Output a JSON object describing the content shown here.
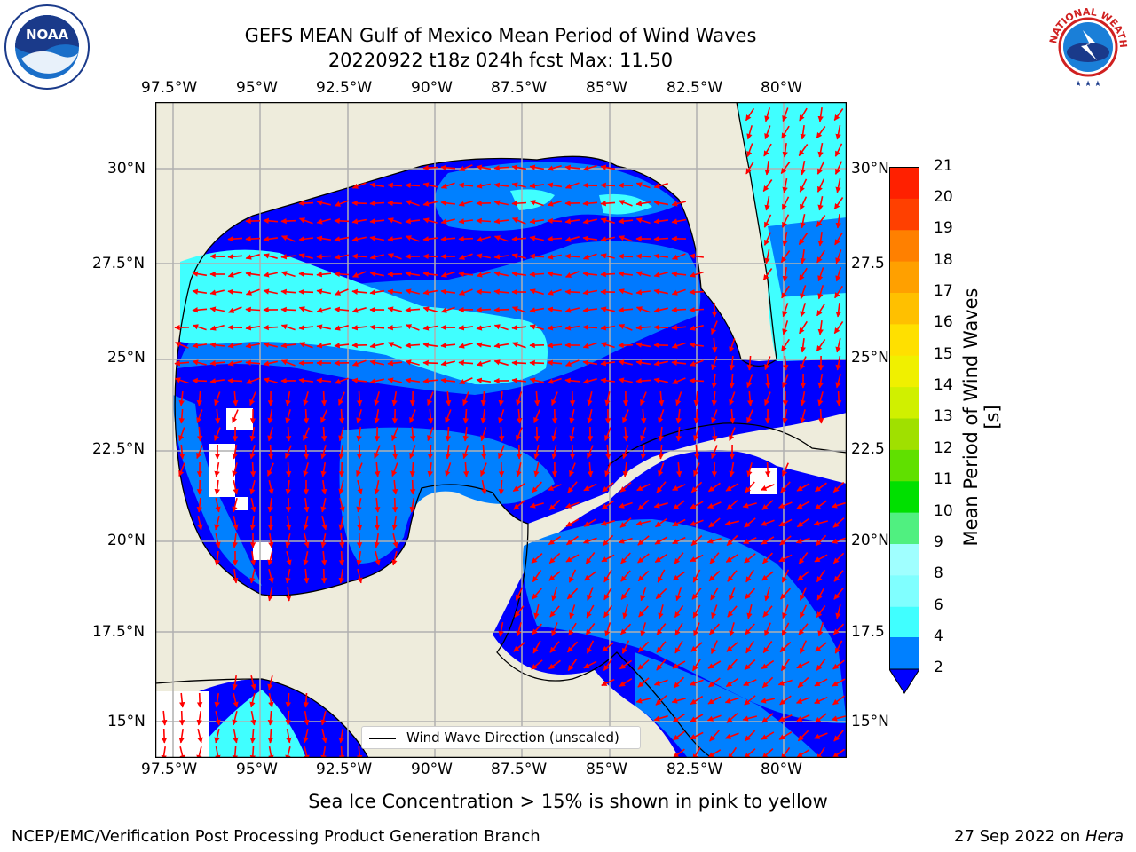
{
  "header": {
    "title_line1": "GEFS MEAN Gulf of Mexico Mean Period of Wind Waves",
    "title_line2": "20220922 t18z 024h fcst   Max: 11.50"
  },
  "logos": {
    "left": {
      "name": "noaa-logo",
      "text": "NOAA",
      "ring_text": "NATIONAL OCEANIC AND ATMOSPHERIC ADMINISTRATION · U.S. DEPARTMENT OF COMMERCE"
    },
    "right": {
      "name": "nws-logo",
      "ring_text": "NATIONAL WEATHER SERVICE"
    }
  },
  "map": {
    "lon_ticks": [
      "97.5°W",
      "95°W",
      "92.5°W",
      "90°W",
      "87.5°W",
      "85°W",
      "82.5°W",
      "80°W"
    ],
    "lat_ticks": [
      "30°N",
      "27.5°N",
      "25°N",
      "22.5°N",
      "20°N",
      "17.5°N",
      "15°N"
    ],
    "lat_ticks_right": [
      "30°N",
      "27.5",
      "25°N",
      "22.5",
      "20°N",
      "17.5",
      "15°N"
    ],
    "legend_label": "Wind Wave Direction (unscaled)",
    "colors": {
      "land": "#eeecdc",
      "ocean_blue": "#0000ff",
      "mid_blue": "#0080ff",
      "cyan": "#00ffff",
      "light_cyan": "#40ffff",
      "arrow": "#ff0000",
      "grid": "#b0b0b0"
    }
  },
  "colorbar": {
    "label": "Mean Period of Wind Waves [s]",
    "tick_labels": [
      "2",
      "4",
      "6",
      "8",
      "9",
      "10",
      "11",
      "12",
      "13",
      "14",
      "15",
      "16",
      "17",
      "18",
      "19",
      "20",
      "21"
    ],
    "colors": [
      "#0080ff",
      "#00ffff",
      "#40ffff",
      "#80ffff",
      "#a0ffff",
      "#50f080",
      "#00e000",
      "#60e000",
      "#a0e000",
      "#d0f000",
      "#f0f000",
      "#ffe000",
      "#ffc000",
      "#ffa000",
      "#ff8000",
      "#ff4000",
      "#ff2000",
      "#ff0000"
    ],
    "extend_color": "#0000ff"
  },
  "note": "Sea Ice Concentration > 15% is shown in pink to yellow",
  "footer": {
    "left": "NCEP/EMC/Verification Post Processing Product Generation Branch",
    "right_prefix": "27 Sep 2022 on ",
    "right_host": "Hera"
  }
}
